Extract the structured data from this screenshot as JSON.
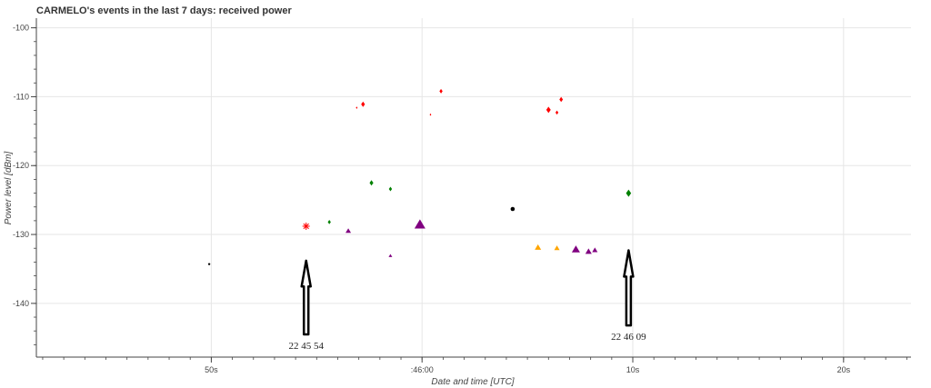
{
  "chart_data": {
    "type": "scatter",
    "title": "CARMELO's events in the last 7 days: received power",
    "xlabel": "Date and time [UTC]",
    "ylabel": "Power level [dBm]",
    "x_unit": "time (HH:MM:SS UTC)",
    "xlim": [
      "22:45:41.7",
      "22:46:23.2"
    ],
    "ylim": [
      -147.8,
      -98.6
    ],
    "x_ticks": [
      {
        "t": "22:45:50",
        "label": "50s"
      },
      {
        "t": "22:46:00",
        "label": ":46:00"
      },
      {
        "t": "22:46:10",
        "label": "10s"
      },
      {
        "t": "22:46:20",
        "label": "20s"
      }
    ],
    "y_ticks": [
      -100,
      -110,
      -120,
      -130,
      -140
    ],
    "grid": true,
    "legend": "none",
    "colors": {
      "red": "#ff0000",
      "green": "#008000",
      "purple": "#800080",
      "orange": "#ffa500",
      "black": "#000000"
    },
    "points": [
      {
        "x": "22:45:49.9",
        "y": -134.3,
        "shape": "dot",
        "color": "#000000",
        "size": 1.2
      },
      {
        "x": "22:45:54.5",
        "y": -128.8,
        "shape": "asterisk",
        "color": "#ff0000",
        "size": 4
      },
      {
        "x": "22:45:55.6",
        "y": -128.2,
        "shape": "diamond",
        "color": "#008000",
        "size": 2.4
      },
      {
        "x": "22:45:56.5",
        "y": -129.5,
        "shape": "triangle",
        "color": "#800080",
        "size": 3
      },
      {
        "x": "22:45:56.9",
        "y": -111.6,
        "shape": "diamond",
        "color": "#ff0000",
        "size": 1.3
      },
      {
        "x": "22:45:57.2",
        "y": -111.1,
        "shape": "diamond",
        "color": "#ff0000",
        "size": 3
      },
      {
        "x": "22:45:57.6",
        "y": -122.5,
        "shape": "diamond",
        "color": "#008000",
        "size": 3
      },
      {
        "x": "22:45:58.5",
        "y": -133.1,
        "shape": "triangle",
        "color": "#800080",
        "size": 2
      },
      {
        "x": "22:45:58.5",
        "y": -123.4,
        "shape": "diamond",
        "color": "#008000",
        "size": 2.5
      },
      {
        "x": "22:45:59.9",
        "y": -128.6,
        "shape": "triangle",
        "color": "#800080",
        "size": 6
      },
      {
        "x": "22:46:00.4",
        "y": -112.6,
        "shape": "diamond",
        "color": "#ff0000",
        "size": 1.3
      },
      {
        "x": "22:46:00.9",
        "y": -109.2,
        "shape": "diamond",
        "color": "#ff0000",
        "size": 2.5
      },
      {
        "x": "22:46:04.3",
        "y": -126.3,
        "shape": "dot",
        "color": "#000000",
        "size": 2.3
      },
      {
        "x": "22:46:05.5",
        "y": -131.9,
        "shape": "triangle",
        "color": "#ffa500",
        "size": 3.5
      },
      {
        "x": "22:46:06.0",
        "y": -111.9,
        "shape": "diamond",
        "color": "#ff0000",
        "size": 3.5
      },
      {
        "x": "22:46:06.4",
        "y": -132.0,
        "shape": "triangle",
        "color": "#ffa500",
        "size": 3
      },
      {
        "x": "22:46:06.4",
        "y": -112.3,
        "shape": "diamond",
        "color": "#ff0000",
        "size": 2.3
      },
      {
        "x": "22:46:06.6",
        "y": -110.4,
        "shape": "diamond",
        "color": "#ff0000",
        "size": 2.8
      },
      {
        "x": "22:46:07.3",
        "y": -132.2,
        "shape": "triangle",
        "color": "#800080",
        "size": 4.5
      },
      {
        "x": "22:46:07.9",
        "y": -132.5,
        "shape": "triangle",
        "color": "#800080",
        "size": 3.5
      },
      {
        "x": "22:46:08.2",
        "y": -132.3,
        "shape": "triangle",
        "color": "#800080",
        "size": 3
      },
      {
        "x": "22:46:09.8",
        "y": -124.0,
        "shape": "diamond",
        "color": "#008000",
        "size": 4
      }
    ],
    "annotations": [
      {
        "text": "22 45 54",
        "x": "22:45:54.5",
        "arrow_top_y": -133.8,
        "arrow_bottom_y": -144.5
      },
      {
        "text": "22 46 09",
        "x": "22:46:09.8",
        "arrow_top_y": -132.3,
        "arrow_bottom_y": -143.2
      }
    ]
  }
}
